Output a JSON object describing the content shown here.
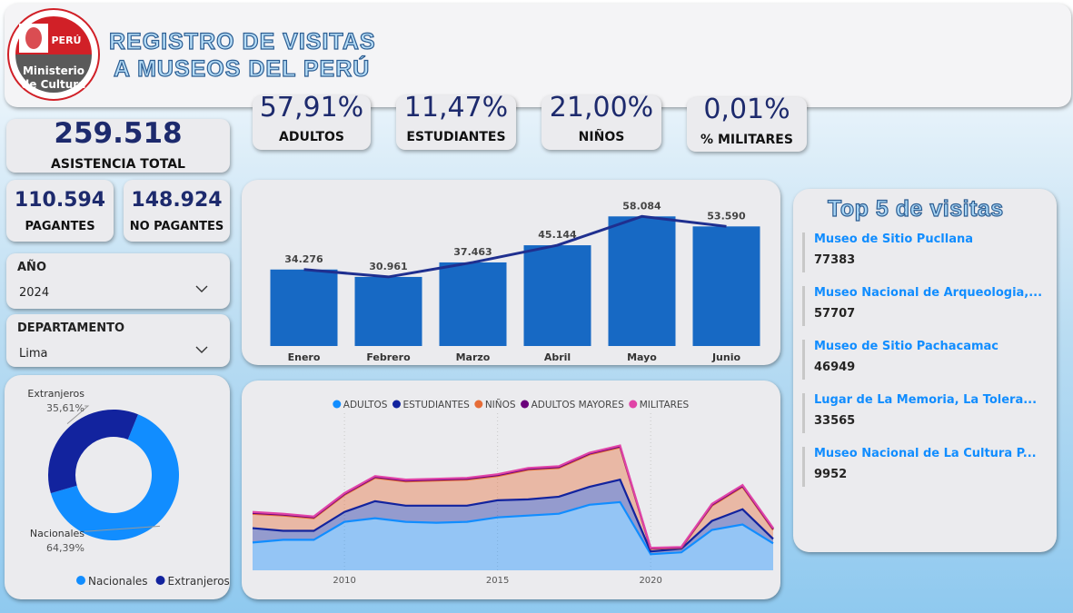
{
  "header": {
    "title_lines": [
      "REGISTRO DE VISITAS",
      "A MUSEOS DEL PERÚ"
    ],
    "logo": {
      "country": "PERÚ",
      "lines": [
        "Ministerio",
        "de Cultura"
      ]
    }
  },
  "kpis": [
    {
      "value": "57,91%",
      "label": "ADULTOS"
    },
    {
      "value": "11,47%",
      "label": "ESTUDIANTES"
    },
    {
      "value": "21,00%",
      "label": "NIÑOS"
    },
    {
      "value": "0,01%",
      "label": "% MILITARES"
    }
  ],
  "totals": [
    {
      "value": "259.518",
      "label": "ASISTENCIA TOTAL"
    },
    {
      "value": "110.594",
      "label": "PAGANTES"
    },
    {
      "value": "148.924",
      "label": "NO PAGANTES"
    }
  ],
  "filters": [
    {
      "label": "AÑO",
      "value": "2024"
    },
    {
      "label": "DEPARTAMENTO",
      "value": "Lima"
    }
  ],
  "top5": {
    "title": "Top 5 de visitas",
    "items": [
      {
        "name": "Museo de Sitio Pucllana",
        "value": "77383"
      },
      {
        "name": "Museo Nacional de Arqueologia,...",
        "value": "57707"
      },
      {
        "name": "Museo de Sitio Pachacamac",
        "value": "46949"
      },
      {
        "name": "Lugar de La Memoria, La Tolera...",
        "value": "33565"
      },
      {
        "name": "Museo Nacional de La Cultura P...",
        "value": "9952"
      }
    ]
  },
  "chart_data": [
    {
      "type": "bar",
      "categories": [
        "Enero",
        "Febrero",
        "Marzo",
        "Abril",
        "Mayo",
        "Junio"
      ],
      "values": [
        34276,
        30961,
        37463,
        45144,
        58084,
        53590
      ],
      "value_labels": [
        "34.276",
        "30.961",
        "37.463",
        "45.144",
        "58.084",
        "53.590"
      ],
      "color": "#1769c4",
      "line": true,
      "line_color": "#1f2f8f",
      "ylim": [
        0,
        70000
      ]
    },
    {
      "type": "donut",
      "categories": [
        "Nacionales",
        "Extranjeros"
      ],
      "values": [
        64.39,
        35.61
      ],
      "value_labels": [
        "64,39%",
        "35,61%"
      ],
      "colors": [
        "#118dff",
        "#12239e"
      ],
      "legend": "bottom"
    },
    {
      "type": "area",
      "stacked": true,
      "x": [
        2007,
        2008,
        2009,
        2010,
        2011,
        2012,
        2013,
        2014,
        2015,
        2016,
        2017,
        2018,
        2019,
        2020,
        2021,
        2022,
        2023,
        2024
      ],
      "xlim": [
        2007,
        2024
      ],
      "xticks": [
        2010,
        2015,
        2020
      ],
      "ylim": [
        0,
        3500000
      ],
      "grid": true,
      "legend": "top",
      "series": [
        {
          "name": "ADULTOS",
          "color": "#118dff",
          "values": [
            620000,
            680000,
            680000,
            1080000,
            1160000,
            1080000,
            1060000,
            1080000,
            1180000,
            1220000,
            1260000,
            1460000,
            1520000,
            360000,
            400000,
            900000,
            1020000,
            600000
          ]
        },
        {
          "name": "ESTUDIANTES",
          "color": "#12239e",
          "values": [
            320000,
            200000,
            200000,
            220000,
            380000,
            360000,
            380000,
            360000,
            380000,
            360000,
            380000,
            400000,
            500000,
            60000,
            80000,
            200000,
            340000,
            100000
          ]
        },
        {
          "name": "NIÑOS",
          "color": "#e66c37",
          "values": [
            320000,
            340000,
            280000,
            380000,
            520000,
            540000,
            560000,
            580000,
            540000,
            660000,
            640000,
            720000,
            720000,
            60000,
            20000,
            340000,
            500000,
            200000
          ]
        },
        {
          "name": "ADULTOS MAYORES",
          "color": "#6b007b",
          "values": [
            20000,
            20000,
            20000,
            20000,
            20000,
            20000,
            20000,
            20000,
            20000,
            20000,
            20000,
            20000,
            20000,
            10000,
            10000,
            20000,
            20000,
            20000
          ]
        },
        {
          "name": "MILITARES",
          "color": "#e044a7",
          "values": [
            20000,
            20000,
            20000,
            20000,
            20000,
            20000,
            20000,
            20000,
            20000,
            20000,
            20000,
            20000,
            20000,
            10000,
            10000,
            20000,
            20000,
            20000
          ]
        }
      ]
    }
  ]
}
